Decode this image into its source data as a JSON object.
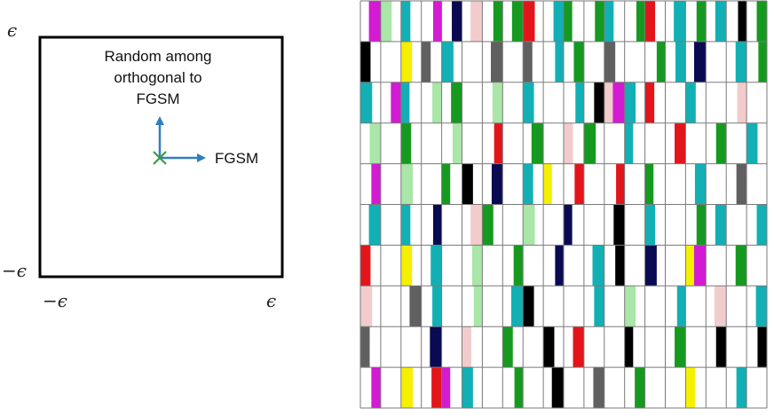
{
  "diagram": {
    "tick_labels": {
      "y_top": "ϵ",
      "y_bottom": "−ϵ",
      "x_left": "−ϵ",
      "x_right": "ϵ"
    },
    "annotation_lines": [
      "Random among",
      "orthogonal to",
      "FGSM"
    ],
    "arrow_right_label": "FGSM",
    "colors": {
      "arrow": "#2f7fc0",
      "cross": "#3a9a4a",
      "box": "#000000"
    }
  },
  "grid": {
    "rows": 10,
    "cols": 20,
    "palette": {
      "W": "#ffffff",
      "G": "#159a1f",
      "L": "#a9e6a8",
      "T": "#12b0b5",
      "M": "#d21bd2",
      "R": "#e2151b",
      "P": "#f2cccc",
      "N": "#0a0a52",
      "K": "#000000",
      "Y": "#f5f000",
      "D": "#606060"
    },
    "cells": [
      [
        [
          "W",
          "M"
        ],
        [
          "L",
          "W"
        ],
        [
          "T",
          "W"
        ],
        [
          "W",
          "M"
        ],
        [
          "W",
          "N"
        ],
        [
          "W",
          "P"
        ],
        [
          "W",
          "G"
        ],
        [
          "W",
          "G"
        ],
        [
          "R",
          "W"
        ],
        [
          "W",
          "T"
        ],
        [
          "G",
          "W"
        ],
        [
          "W",
          "G"
        ],
        [
          "T",
          "W"
        ],
        [
          "W",
          "G"
        ],
        [
          "R",
          "W"
        ],
        [
          "W",
          "T"
        ],
        [
          "W",
          "G"
        ],
        [
          "W",
          "T"
        ],
        [
          "W",
          "K"
        ],
        [
          "W",
          "G"
        ]
      ],
      [
        [
          "K",
          "W"
        ],
        [
          "W",
          "W"
        ],
        [
          "Y",
          "W"
        ],
        [
          "D",
          "W"
        ],
        [
          "T",
          "W"
        ],
        [
          "W",
          "W"
        ],
        [
          "W",
          "D"
        ],
        [
          "W",
          "W"
        ],
        [
          "D",
          "W"
        ],
        [
          "W",
          "T"
        ],
        [
          "W",
          "G"
        ],
        [
          "W",
          "W"
        ],
        [
          "D",
          "W"
        ],
        [
          "W",
          "W"
        ],
        [
          "W",
          "G"
        ],
        [
          "W",
          "T"
        ],
        [
          "W",
          "N"
        ],
        [
          "W",
          "W"
        ],
        [
          "W",
          "T"
        ],
        [
          "W",
          "G"
        ]
      ],
      [
        [
          "T",
          "W"
        ],
        [
          "W",
          "M"
        ],
        [
          "T",
          "W"
        ],
        [
          "W",
          "L"
        ],
        [
          "W",
          "G"
        ],
        [
          "W",
          "W"
        ],
        [
          "W",
          "L"
        ],
        [
          "W",
          "W"
        ],
        [
          "T",
          "W"
        ],
        [
          "W",
          "W"
        ],
        [
          "W",
          "T"
        ],
        [
          "W",
          "K"
        ],
        [
          "P",
          "M"
        ],
        [
          "T",
          "W"
        ],
        [
          "R",
          "W"
        ],
        [
          "W",
          "W"
        ],
        [
          "T",
          "W"
        ],
        [
          "W",
          "W"
        ],
        [
          "W",
          "P"
        ],
        [
          "W",
          "W"
        ]
      ],
      [
        [
          "W",
          "L"
        ],
        [
          "W",
          "W"
        ],
        [
          "G",
          "W"
        ],
        [
          "W",
          "W"
        ],
        [
          "W",
          "L"
        ],
        [
          "W",
          "W"
        ],
        [
          "W",
          "R"
        ],
        [
          "W",
          "W"
        ],
        [
          "W",
          "G"
        ],
        [
          "W",
          "W"
        ],
        [
          "P",
          "W"
        ],
        [
          "G",
          "W"
        ],
        [
          "W",
          "W"
        ],
        [
          "T",
          "W"
        ],
        [
          "W",
          "W"
        ],
        [
          "W",
          "R"
        ],
        [
          "W",
          "W"
        ],
        [
          "W",
          "G"
        ],
        [
          "W",
          "W"
        ],
        [
          "T",
          "W"
        ]
      ],
      [
        [
          "W",
          "M"
        ],
        [
          "W",
          "W"
        ],
        [
          "L",
          "W"
        ],
        [
          "W",
          "W"
        ],
        [
          "G",
          "W"
        ],
        [
          "K",
          "W"
        ],
        [
          "W",
          "N"
        ],
        [
          "W",
          "W"
        ],
        [
          "T",
          "W"
        ],
        [
          "Y",
          "W"
        ],
        [
          "W",
          "R"
        ],
        [
          "W",
          "W"
        ],
        [
          "W",
          "R"
        ],
        [
          "W",
          "W"
        ],
        [
          "G",
          "W"
        ],
        [
          "W",
          "W"
        ],
        [
          "W",
          "T"
        ],
        [
          "W",
          "W"
        ],
        [
          "W",
          "D"
        ],
        [
          "W",
          "W"
        ]
      ],
      [
        [
          "W",
          "T"
        ],
        [
          "W",
          "W"
        ],
        [
          "T",
          "W"
        ],
        [
          "W",
          "N"
        ],
        [
          "W",
          "W"
        ],
        [
          "W",
          "P"
        ],
        [
          "G",
          "W"
        ],
        [
          "W",
          "W"
        ],
        [
          "L",
          "W"
        ],
        [
          "W",
          "W"
        ],
        [
          "N",
          "W"
        ],
        [
          "W",
          "W"
        ],
        [
          "W",
          "K"
        ],
        [
          "W",
          "W"
        ],
        [
          "T",
          "W"
        ],
        [
          "W",
          "W"
        ],
        [
          "W",
          "G"
        ],
        [
          "W",
          "T"
        ],
        [
          "W",
          "W"
        ],
        [
          "W",
          "T"
        ]
      ],
      [
        [
          "R",
          "W"
        ],
        [
          "W",
          "W"
        ],
        [
          "Y",
          "W"
        ],
        [
          "W",
          "T"
        ],
        [
          "W",
          "W"
        ],
        [
          "W",
          "L"
        ],
        [
          "W",
          "W"
        ],
        [
          "W",
          "G"
        ],
        [
          "W",
          "W"
        ],
        [
          "W",
          "N"
        ],
        [
          "W",
          "W"
        ],
        [
          "W",
          "T"
        ],
        [
          "W",
          "K"
        ],
        [
          "W",
          "W"
        ],
        [
          "N",
          "W"
        ],
        [
          "W",
          "W"
        ],
        [
          "Y",
          "M"
        ],
        [
          "W",
          "W"
        ],
        [
          "W",
          "G"
        ],
        [
          "W",
          "W"
        ]
      ],
      [
        [
          "P",
          "W"
        ],
        [
          "W",
          "W"
        ],
        [
          "W",
          "D"
        ],
        [
          "W",
          "T"
        ],
        [
          "W",
          "W"
        ],
        [
          "W",
          "L"
        ],
        [
          "W",
          "W"
        ],
        [
          "W",
          "T"
        ],
        [
          "K",
          "W"
        ],
        [
          "W",
          "W"
        ],
        [
          "W",
          "W"
        ],
        [
          "W",
          "T"
        ],
        [
          "W",
          "W"
        ],
        [
          "L",
          "W"
        ],
        [
          "W",
          "W"
        ],
        [
          "W",
          "T"
        ],
        [
          "W",
          "W"
        ],
        [
          "W",
          "P"
        ],
        [
          "W",
          "W"
        ],
        [
          "W",
          "T"
        ]
      ],
      [
        [
          "D",
          "W"
        ],
        [
          "W",
          "W"
        ],
        [
          "W",
          "W"
        ],
        [
          "W",
          "N"
        ],
        [
          "W",
          "W"
        ],
        [
          "P",
          "W"
        ],
        [
          "W",
          "W"
        ],
        [
          "G",
          "W"
        ],
        [
          "W",
          "W"
        ],
        [
          "K",
          "W"
        ],
        [
          "W",
          "R"
        ],
        [
          "W",
          "W"
        ],
        [
          "W",
          "W"
        ],
        [
          "K",
          "W"
        ],
        [
          "W",
          "W"
        ],
        [
          "W",
          "G"
        ],
        [
          "W",
          "W"
        ],
        [
          "W",
          "K"
        ],
        [
          "W",
          "W"
        ],
        [
          "W",
          "K"
        ]
      ],
      [
        [
          "W",
          "M"
        ],
        [
          "W",
          "W"
        ],
        [
          "Y",
          "W"
        ],
        [
          "W",
          "R"
        ],
        [
          "M",
          "W"
        ],
        [
          "T",
          "W"
        ],
        [
          "W",
          "W"
        ],
        [
          "W",
          "G"
        ],
        [
          "W",
          "W"
        ],
        [
          "W",
          "K"
        ],
        [
          "W",
          "W"
        ],
        [
          "W",
          "D"
        ],
        [
          "W",
          "W"
        ],
        [
          "W",
          "G"
        ],
        [
          "W",
          "W"
        ],
        [
          "W",
          "W"
        ],
        [
          "Y",
          "W"
        ],
        [
          "W",
          "W"
        ],
        [
          "W",
          "T"
        ],
        [
          "W",
          "W"
        ]
      ]
    ]
  }
}
